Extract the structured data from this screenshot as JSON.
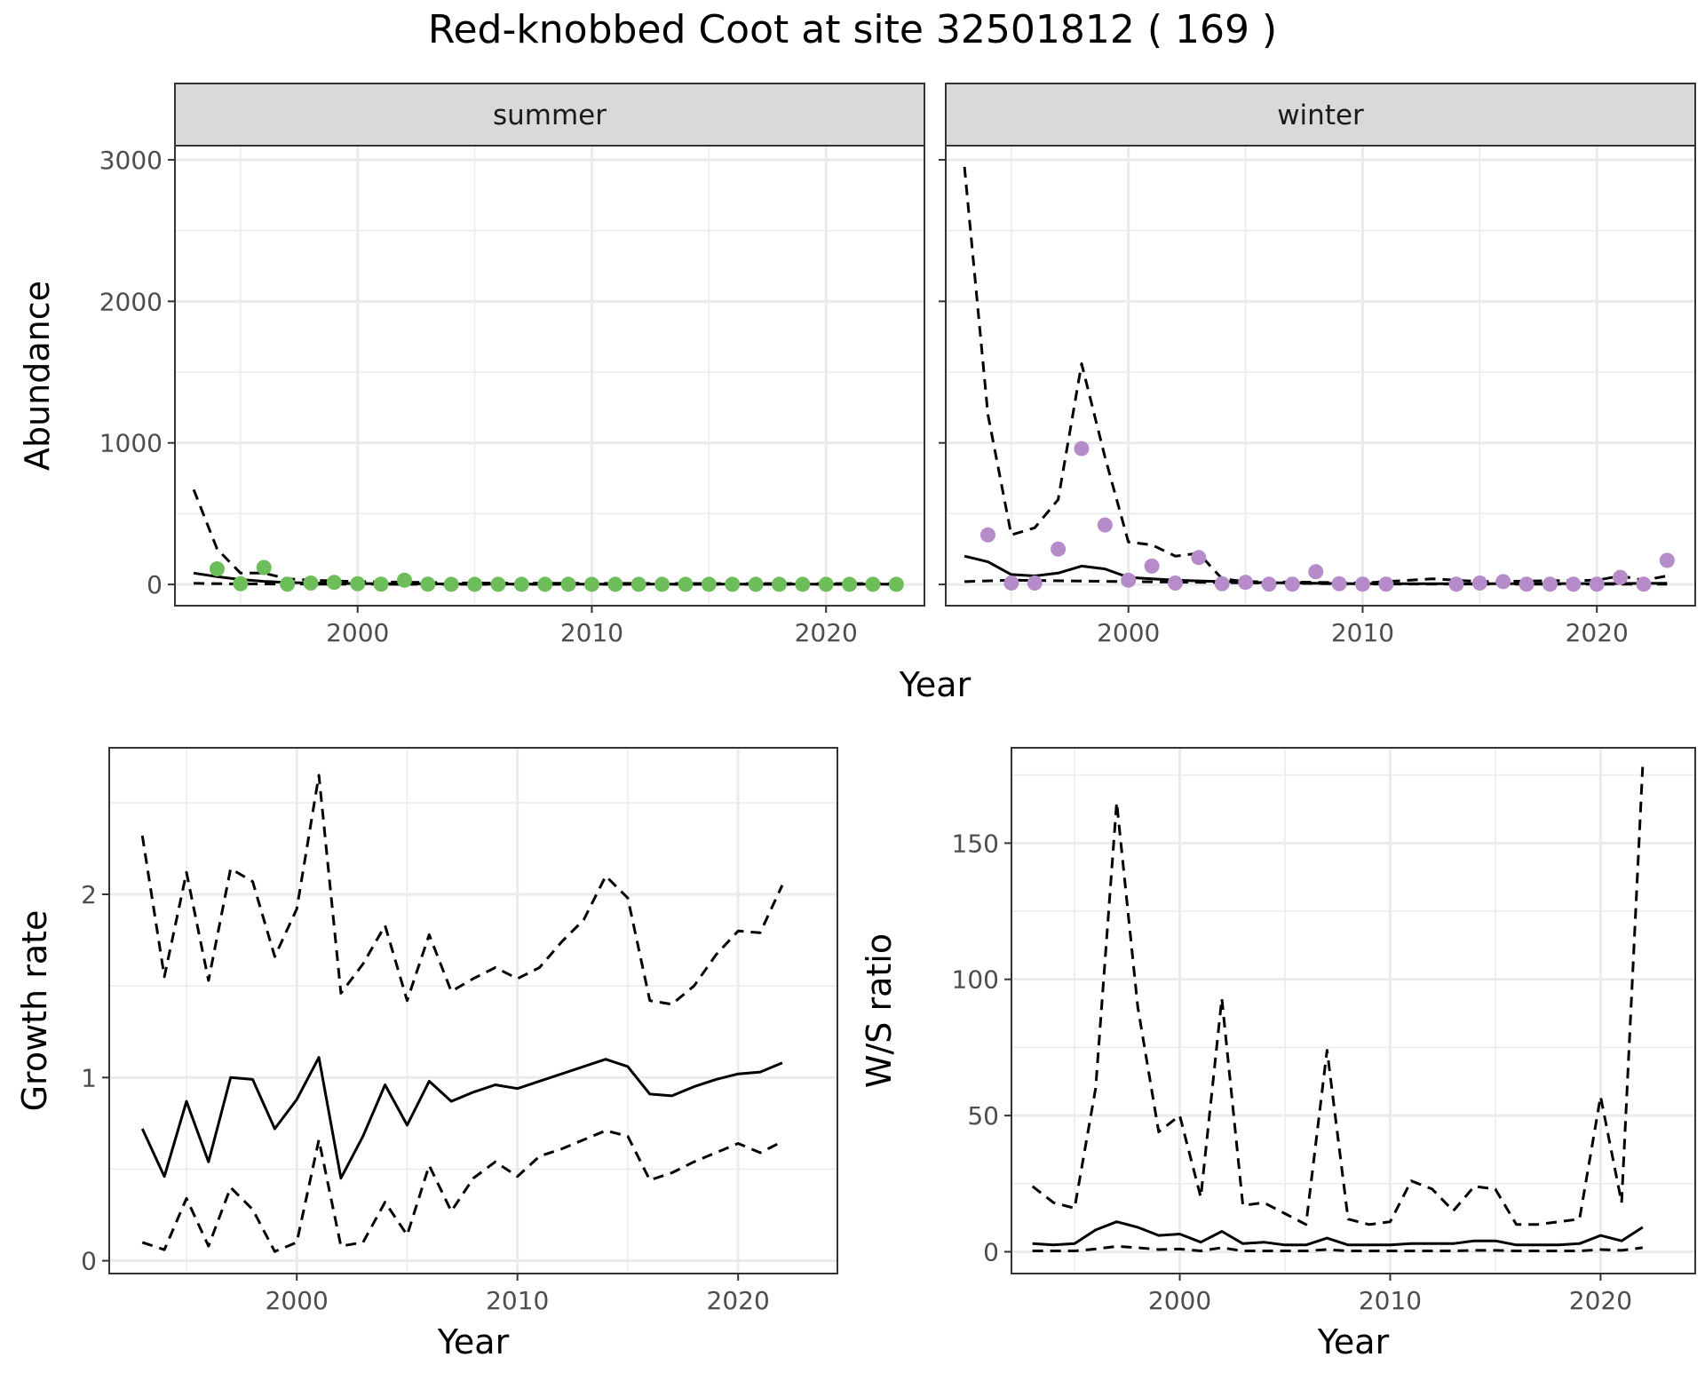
{
  "title": "Red-knobbed Coot at site 32501812 ( 169 )",
  "colors": {
    "summer_points": "#6DBE5A",
    "winter_points": "#B58BC9",
    "strip_bg": "#D9D9D9",
    "grid": "#EBEBEB",
    "line": "#000000"
  },
  "chart_data": [
    {
      "type": "scatter",
      "panel": "summer",
      "strip_label": "summer",
      "xlabel": "Year",
      "ylabel": "Abundance",
      "xlim": [
        1992.2,
        2024.2
      ],
      "ylim": [
        -150,
        3100
      ],
      "xticks": [
        2000,
        2010,
        2020
      ],
      "yticks": [
        0,
        1000,
        2000,
        3000
      ],
      "points": {
        "x": [
          1994,
          1995,
          1996,
          1997,
          1998,
          1999,
          2000,
          2001,
          2002,
          2003,
          2004,
          2005,
          2006,
          2007,
          2008,
          2009,
          2010,
          2011,
          2012,
          2013,
          2014,
          2015,
          2016,
          2017,
          2018,
          2019,
          2020,
          2021,
          2022,
          2023
        ],
        "y": [
          110,
          5,
          120,
          2,
          10,
          15,
          5,
          2,
          30,
          2,
          1,
          1,
          1,
          1,
          1,
          1,
          1,
          1,
          1,
          1,
          1,
          1,
          1,
          1,
          1,
          1,
          1,
          1,
          1,
          1
        ]
      },
      "lines": [
        {
          "style": "solid",
          "x": [
            1993,
            1994,
            1995,
            1996,
            1997,
            1998,
            2000,
            2005,
            2010,
            2015,
            2020,
            2023
          ],
          "y": [
            80,
            55,
            35,
            22,
            14,
            10,
            6,
            3,
            2,
            2,
            2,
            2
          ]
        },
        {
          "style": "dashed",
          "x": [
            1993,
            1994,
            1995,
            1996,
            1997,
            1998,
            2000,
            2005,
            2010,
            2015,
            2020,
            2023
          ],
          "y": [
            670,
            250,
            80,
            80,
            40,
            30,
            20,
            10,
            8,
            6,
            6,
            6
          ]
        },
        {
          "style": "dashed",
          "x": [
            1993,
            1995,
            2000,
            2010,
            2023
          ],
          "y": [
            8,
            4,
            2,
            1,
            1
          ]
        }
      ]
    },
    {
      "type": "scatter",
      "panel": "winter",
      "strip_label": "winter",
      "xlabel": "Year",
      "ylabel": "Abundance",
      "xlim": [
        1992.2,
        2024.2
      ],
      "ylim": [
        -150,
        3100
      ],
      "xticks": [
        2000,
        2010,
        2020
      ],
      "yticks": [
        0,
        1000,
        2000,
        3000
      ],
      "points": {
        "x": [
          1994,
          1995,
          1996,
          1997,
          1998,
          1999,
          2000,
          2001,
          2002,
          2003,
          2004,
          2005,
          2006,
          2007,
          2008,
          2009,
          2010,
          2011,
          2014,
          2015,
          2016,
          2017,
          2018,
          2019,
          2020,
          2021,
          2022,
          2023
        ],
        "y": [
          350,
          10,
          10,
          250,
          960,
          420,
          30,
          130,
          10,
          190,
          5,
          15,
          2,
          2,
          90,
          5,
          2,
          2,
          2,
          10,
          20,
          2,
          2,
          2,
          2,
          50,
          2,
          170
        ]
      },
      "lines": [
        {
          "style": "solid",
          "x": [
            1993,
            1994,
            1995,
            1996,
            1997,
            1998,
            1999,
            2000,
            2001,
            2002,
            2003,
            2004,
            2005,
            2008,
            2010,
            2015,
            2020,
            2023
          ],
          "y": [
            200,
            160,
            70,
            60,
            80,
            130,
            110,
            50,
            40,
            30,
            25,
            20,
            15,
            8,
            5,
            5,
            6,
            8
          ]
        },
        {
          "style": "dashed",
          "x": [
            1993,
            1994,
            1995,
            1996,
            1997,
            1998,
            1999,
            2000,
            2001,
            2002,
            2003,
            2004,
            2005,
            2008,
            2010,
            2013,
            2015,
            2020,
            2021,
            2022,
            2023
          ],
          "y": [
            2950,
            1200,
            350,
            400,
            600,
            1560,
            900,
            300,
            280,
            200,
            220,
            40,
            20,
            15,
            10,
            40,
            20,
            30,
            60,
            30,
            60
          ]
        },
        {
          "style": "dashed",
          "x": [
            1993,
            1995,
            2000,
            2010,
            2023
          ],
          "y": [
            20,
            30,
            20,
            3,
            2
          ]
        }
      ]
    },
    {
      "type": "line",
      "panel": "growth",
      "xlabel": "Year",
      "ylabel": "Growth rate",
      "xlim": [
        1991.5,
        2024.5
      ],
      "ylim": [
        -0.07,
        2.8
      ],
      "xticks": [
        2000,
        2010,
        2020
      ],
      "yticks": [
        0,
        1,
        2
      ],
      "series": [
        {
          "style": "solid",
          "x": [
            1993,
            1994,
            1995,
            1996,
            1997,
            1998,
            1999,
            2000,
            2001,
            2002,
            2003,
            2004,
            2005,
            2006,
            2007,
            2008,
            2009,
            2010,
            2011,
            2012,
            2013,
            2014,
            2015,
            2016,
            2017,
            2018,
            2019,
            2020,
            2021,
            2022
          ],
          "values": [
            0.72,
            0.46,
            0.87,
            0.54,
            1.0,
            0.99,
            0.72,
            0.88,
            1.11,
            0.45,
            0.68,
            0.96,
            0.74,
            0.98,
            0.87,
            0.92,
            0.96,
            0.94,
            0.98,
            1.02,
            1.06,
            1.1,
            1.06,
            0.91,
            0.9,
            0.95,
            0.99,
            1.02,
            1.03,
            1.08
          ]
        },
        {
          "style": "dashed",
          "x": [
            1993,
            1994,
            1995,
            1996,
            1997,
            1998,
            1999,
            2000,
            2001,
            2002,
            2003,
            2004,
            2005,
            2006,
            2007,
            2008,
            2009,
            2010,
            2011,
            2012,
            2013,
            2014,
            2015,
            2016,
            2017,
            2018,
            2019,
            2020,
            2021,
            2022
          ],
          "values": [
            2.32,
            1.55,
            2.12,
            1.53,
            2.14,
            2.07,
            1.66,
            1.92,
            2.65,
            1.46,
            1.62,
            1.83,
            1.42,
            1.78,
            1.47,
            1.54,
            1.6,
            1.54,
            1.6,
            1.74,
            1.86,
            2.1,
            1.98,
            1.42,
            1.4,
            1.5,
            1.67,
            1.8,
            1.79,
            2.05
          ]
        },
        {
          "style": "dashed",
          "x": [
            1993,
            1994,
            1995,
            1996,
            1997,
            1998,
            1999,
            2000,
            2001,
            2002,
            2003,
            2004,
            2005,
            2006,
            2007,
            2008,
            2009,
            2010,
            2011,
            2012,
            2013,
            2014,
            2015,
            2016,
            2017,
            2018,
            2019,
            2020,
            2021,
            2022
          ],
          "values": [
            0.1,
            0.06,
            0.34,
            0.08,
            0.4,
            0.28,
            0.05,
            0.1,
            0.66,
            0.08,
            0.1,
            0.32,
            0.14,
            0.52,
            0.27,
            0.45,
            0.54,
            0.46,
            0.57,
            0.61,
            0.66,
            0.71,
            0.68,
            0.44,
            0.48,
            0.54,
            0.59,
            0.64,
            0.59,
            0.65
          ]
        }
      ]
    },
    {
      "type": "line",
      "panel": "ws_ratio",
      "xlabel": "Year",
      "ylabel": "W/S ratio",
      "xlim": [
        1992,
        2024.5
      ],
      "ylim": [
        -8,
        185
      ],
      "xticks": [
        2000,
        2010,
        2020
      ],
      "yticks": [
        0,
        50,
        100,
        150
      ],
      "series": [
        {
          "style": "solid",
          "x": [
            1993,
            1994,
            1995,
            1996,
            1997,
            1998,
            1999,
            2000,
            2001,
            2002,
            2003,
            2004,
            2005,
            2006,
            2007,
            2008,
            2009,
            2010,
            2011,
            2012,
            2013,
            2014,
            2015,
            2016,
            2017,
            2018,
            2019,
            2020,
            2021,
            2022
          ],
          "values": [
            3,
            2.5,
            3,
            8,
            11,
            9,
            6,
            6.5,
            3.5,
            7.5,
            3,
            3.5,
            2.5,
            2.5,
            5,
            2.5,
            2.5,
            2.5,
            3,
            3,
            3,
            4,
            4,
            2.5,
            2.5,
            2.5,
            3,
            6,
            4,
            9
          ]
        },
        {
          "style": "dashed",
          "x": [
            1993,
            1994,
            1995,
            1996,
            1997,
            1998,
            1999,
            2000,
            2001,
            2002,
            2003,
            2004,
            2005,
            2006,
            2007,
            2008,
            2009,
            2010,
            2011,
            2012,
            2013,
            2014,
            2015,
            2016,
            2017,
            2018,
            2019,
            2020,
            2021,
            2022
          ],
          "values": [
            24,
            18,
            16,
            60,
            165,
            90,
            44,
            50,
            20,
            93,
            17,
            18,
            14,
            10,
            74,
            12,
            10,
            11,
            26,
            23,
            15,
            24,
            23,
            10,
            10,
            11,
            12,
            57,
            18,
            178
          ]
        },
        {
          "style": "dashed",
          "x": [
            1993,
            1994,
            1995,
            1996,
            1997,
            1998,
            1999,
            2000,
            2001,
            2002,
            2003,
            2004,
            2005,
            2006,
            2007,
            2008,
            2009,
            2010,
            2011,
            2012,
            2013,
            2014,
            2015,
            2016,
            2017,
            2018,
            2019,
            2020,
            2021,
            2022
          ],
          "values": [
            0.3,
            0.3,
            0.3,
            1,
            2,
            1.5,
            0.8,
            1,
            0.3,
            1.5,
            0.3,
            0.3,
            0.3,
            0.3,
            0.8,
            0.3,
            0.3,
            0.3,
            0.3,
            0.3,
            0.3,
            0.5,
            0.5,
            0.3,
            0.3,
            0.3,
            0.3,
            0.8,
            0.5,
            1.5
          ]
        }
      ]
    }
  ]
}
